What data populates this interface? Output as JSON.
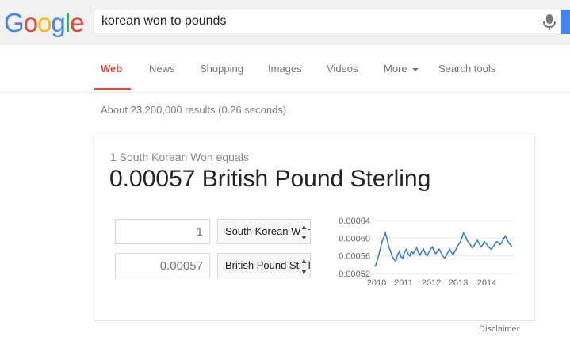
{
  "logo": {
    "text": "Google",
    "letters": [
      {
        "ch": "G",
        "color": "#4285f4"
      },
      {
        "ch": "o",
        "color": "#ea4335"
      },
      {
        "ch": "o",
        "color": "#fbbc05"
      },
      {
        "ch": "g",
        "color": "#4285f4"
      },
      {
        "ch": "l",
        "color": "#34a853"
      },
      {
        "ch": "e",
        "color": "#ea4335"
      }
    ]
  },
  "search": {
    "value": "korean won to pounds"
  },
  "tabs": [
    {
      "label": "Web",
      "active": true
    },
    {
      "label": "News"
    },
    {
      "label": "Shopping"
    },
    {
      "label": "Images"
    },
    {
      "label": "Videos"
    },
    {
      "label": "More"
    },
    {
      "label": "Search tools"
    }
  ],
  "stats": "About 23,200,000 results (0.26 seconds)",
  "converter": {
    "equals_text": "1 South Korean Won equals",
    "result_text": "0.00057 British Pound Sterling",
    "from_amount": "1",
    "from_currency": "South Korean Won",
    "to_amount": "0.00057",
    "to_currency": "British Pound Sterling"
  },
  "chart_data": {
    "type": "line",
    "x_ticks": [
      "2010",
      "2011",
      "2012",
      "2013",
      "2014"
    ],
    "y_ticks": [
      "0.00064",
      "0.00060",
      "0.00056",
      "0.00052"
    ],
    "ylim": [
      0.00052,
      0.00064
    ],
    "series_color": "#3d7ed8",
    "series": [
      {
        "values": [
          0.000535,
          0.000545,
          0.00056,
          0.000575,
          0.000592,
          0.0006,
          0.000612,
          0.000598,
          0.00058,
          0.00057,
          0.000558,
          0.000552,
          0.000548,
          0.000562,
          0.00057,
          0.000558,
          0.000555,
          0.000568,
          0.000575,
          0.000565,
          0.00056,
          0.00057,
          0.000565,
          0.000572,
          0.000578,
          0.000568,
          0.000562,
          0.00057,
          0.000575,
          0.000565,
          0.00056,
          0.000568,
          0.000575,
          0.00058,
          0.000572,
          0.000565,
          0.00057,
          0.000575,
          0.000568,
          0.00056,
          0.000555,
          0.00056,
          0.000568,
          0.000575,
          0.000568,
          0.000562,
          0.00057,
          0.000578,
          0.000585,
          0.00059,
          0.0006,
          0.000612,
          0.000605,
          0.000595,
          0.00059,
          0.000585,
          0.000578,
          0.000582,
          0.00059,
          0.000595,
          0.000588,
          0.00058,
          0.000585,
          0.000592,
          0.000588,
          0.000582,
          0.000578,
          0.000575,
          0.00058,
          0.000586,
          0.000592,
          0.00059,
          0.000585,
          0.00059,
          0.000598,
          0.000605,
          0.000598,
          0.00059,
          0.000585,
          0.00058
        ]
      }
    ]
  },
  "disclaimer": "Disclaimer"
}
